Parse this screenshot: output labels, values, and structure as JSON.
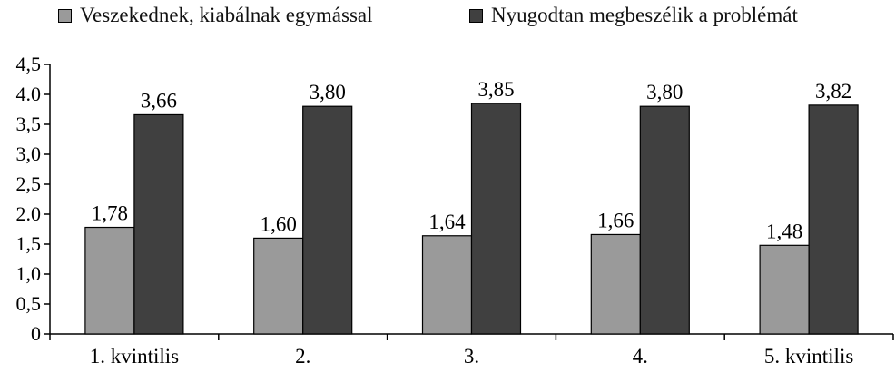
{
  "chart_data": {
    "type": "bar",
    "categories": [
      "1. kvintilis",
      "2.",
      "3.",
      "4.",
      "5. kvintilis"
    ],
    "series": [
      {
        "name": "Veszekednek, kiabálnak egymással",
        "color": "#9a9a9a",
        "values": [
          1.78,
          1.6,
          1.64,
          1.66,
          1.48
        ],
        "labels": [
          "1,78",
          "1,60",
          "1,64",
          "1,66",
          "1,48"
        ]
      },
      {
        "name": "Nyugodtan megbeszélik a problémát",
        "color": "#404040",
        "values": [
          3.66,
          3.8,
          3.85,
          3.8,
          3.82
        ],
        "labels": [
          "3,66",
          "3,80",
          "3,85",
          "3,80",
          "3,82"
        ]
      }
    ],
    "yticks": [
      0,
      0.5,
      1.0,
      1.5,
      2.0,
      2.5,
      3.0,
      3.5,
      4.0,
      4.5
    ],
    "ytick_labels": [
      "0",
      "0,5",
      "1,0",
      "1,5",
      "2.0",
      "2,5",
      "3,0",
      "3,5",
      "4.0",
      "4,5"
    ],
    "ylim": [
      0,
      4.5
    ],
    "grid": false,
    "legend_position": "top",
    "title": "",
    "xlabel": "",
    "ylabel": ""
  }
}
